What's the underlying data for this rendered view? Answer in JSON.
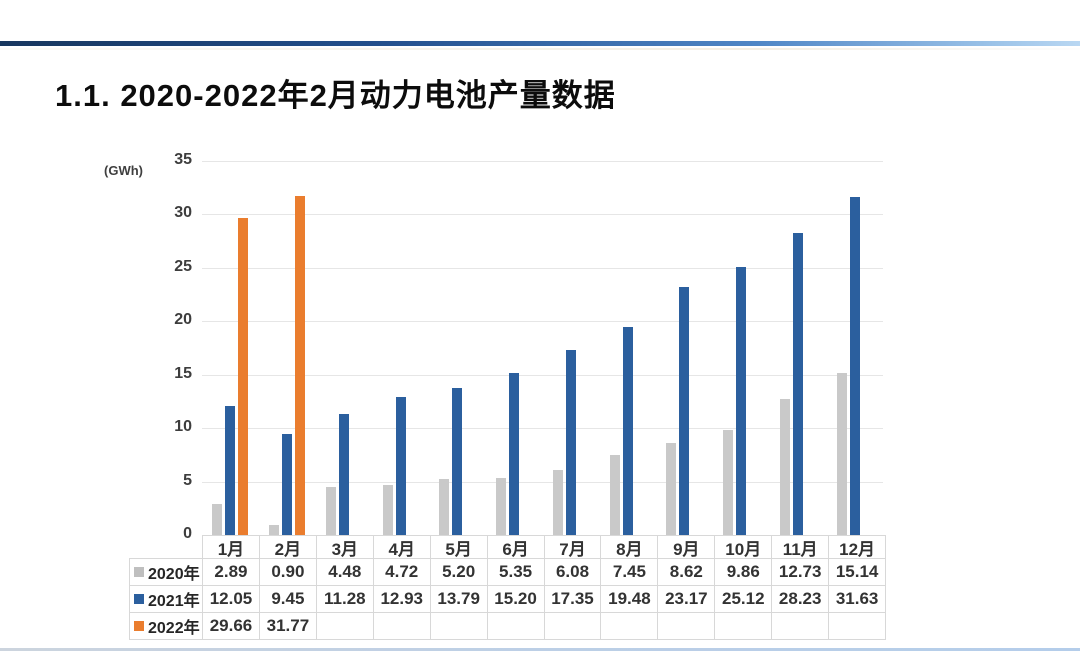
{
  "page": {
    "title": "1.1. 2020-2022年2月动力电池产量数据"
  },
  "chart": {
    "unit_label": "(GWh)"
  },
  "chart_data": {
    "type": "bar",
    "title": "1.1. 2020-2022年2月动力电池产量数据",
    "unit": "GWh",
    "categories": [
      "1月",
      "2月",
      "3月",
      "4月",
      "5月",
      "6月",
      "7月",
      "8月",
      "9月",
      "10月",
      "11月",
      "12月"
    ],
    "series": [
      {
        "name": "2020年",
        "color": "#c9c9c9",
        "swatch_color": "#bfbfbf",
        "values": [
          2.89,
          0.9,
          4.48,
          4.72,
          5.2,
          5.35,
          6.08,
          7.45,
          8.62,
          9.86,
          12.73,
          15.14
        ]
      },
      {
        "name": "2021年",
        "color": "#2b5f9e",
        "swatch_color": "#2b5f9e",
        "values": [
          12.05,
          9.45,
          11.28,
          12.93,
          13.79,
          15.2,
          17.35,
          19.48,
          23.17,
          25.12,
          28.23,
          31.63
        ]
      },
      {
        "name": "2022年",
        "color": "#ea7d2e",
        "swatch_color": "#ea7d2e",
        "values": [
          29.66,
          31.77,
          null,
          null,
          null,
          null,
          null,
          null,
          null,
          null,
          null,
          null
        ]
      }
    ],
    "ylim": [
      0,
      35
    ],
    "yticks": [
      0,
      5,
      10,
      15,
      20,
      25,
      30,
      35
    ],
    "grid": true,
    "value_decimals": 2,
    "legend_position": "table-left"
  }
}
